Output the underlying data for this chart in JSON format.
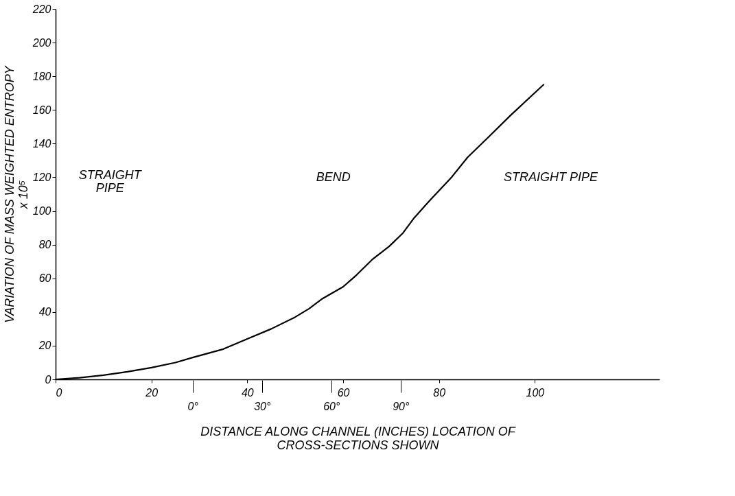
{
  "chart_data": {
    "type": "line",
    "xlabel": "DISTANCE ALONG CHANNEL (INCHES) LOCATION OF\nCROSS-SECTIONS SHOWN",
    "ylabel": "VARIATION OF MASS WEIGHTED ENTROPY\nx 10⁵",
    "x": [
      0,
      5,
      10,
      15,
      20,
      25,
      28.6,
      35,
      40,
      45,
      50,
      52.9,
      55.7,
      60,
      62.8,
      66,
      69.6,
      72.5,
      74.7,
      78,
      82.6,
      86,
      90,
      95,
      101.8
    ],
    "series": [
      {
        "color": "#000000",
        "values": [
          0,
          1,
          2.5,
          4.5,
          7,
          10,
          13,
          18,
          24,
          30,
          37,
          42,
          48,
          55,
          62,
          71,
          79,
          87,
          95.5,
          106,
          120,
          132,
          143,
          157,
          175
        ]
      }
    ],
    "xlim": [
      0,
      126
    ],
    "xticks": [
      0,
      20,
      40,
      60,
      80,
      100
    ],
    "x2lim": [
      -59.3,
      202
    ],
    "x2ticks": [
      {
        "value": 0,
        "label": "0°"
      },
      {
        "value": 30,
        "label": "30°"
      },
      {
        "value": 60,
        "label": "60°"
      },
      {
        "value": 90,
        "label": "90°"
      }
    ],
    "ylim": [
      0,
      220
    ],
    "yticks": [
      0,
      20,
      40,
      60,
      80,
      100,
      120,
      140,
      160,
      180,
      200,
      220
    ],
    "marker": "none",
    "line_style": "solid",
    "annotations": [
      "STRAIGHT\nPIPE",
      "BEND",
      "STRAIGHT PIPE"
    ]
  }
}
